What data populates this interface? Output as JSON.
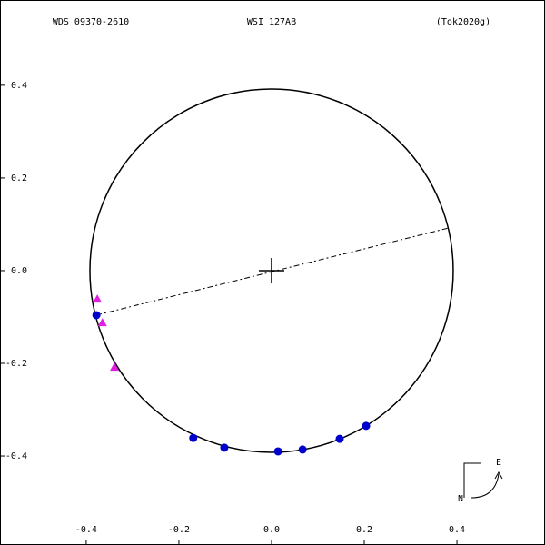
{
  "chart_data": {
    "type": "scatter",
    "title": "WSI 127AB",
    "left_title": "WDS 09370-2610",
    "right_title": "(Tok2020g)",
    "xlim": [
      -0.586,
      0.59
    ],
    "ylim": [
      -0.592,
      0.584
    ],
    "xticks": [
      {
        "value": -0.4,
        "label": "-0.4"
      },
      {
        "value": -0.2,
        "label": "-0.2"
      },
      {
        "value": 0,
        "label": "0.0"
      },
      {
        "value": 0.2,
        "label": "0.2"
      },
      {
        "value": 0.4,
        "label": "0.4"
      }
    ],
    "yticks": [
      {
        "value": 0.4,
        "label": "0.4"
      },
      {
        "value": 0.2,
        "label": "0.2"
      },
      {
        "value": 0,
        "label": "0.0"
      },
      {
        "value": -0.2,
        "label": "-0.2"
      },
      {
        "value": -0.4,
        "label": "-0.4"
      }
    ],
    "orbit": {
      "cx": 0,
      "cy": 0,
      "rx": 0.392,
      "ry": 0.392
    },
    "node_line": {
      "x": [
        -0.378,
        0.382
      ],
      "y": [
        -0.096,
        0.092
      ]
    },
    "series": [
      {
        "marker": "circle",
        "color": "#0000cc",
        "x": [
          -0.378,
          -0.169,
          -0.102,
          0.014,
          0.067,
          0.147,
          0.204
        ],
        "values": [
          -0.096,
          -0.361,
          -0.382,
          -0.39,
          -0.386,
          -0.363,
          -0.335
        ]
      },
      {
        "marker": "triangle",
        "color": "#e020e0",
        "x": [
          -0.376,
          -0.365,
          -0.339
        ],
        "values": [
          -0.061,
          -0.112,
          -0.208
        ]
      }
    ],
    "compass": {
      "east": "E",
      "north": "N"
    }
  }
}
